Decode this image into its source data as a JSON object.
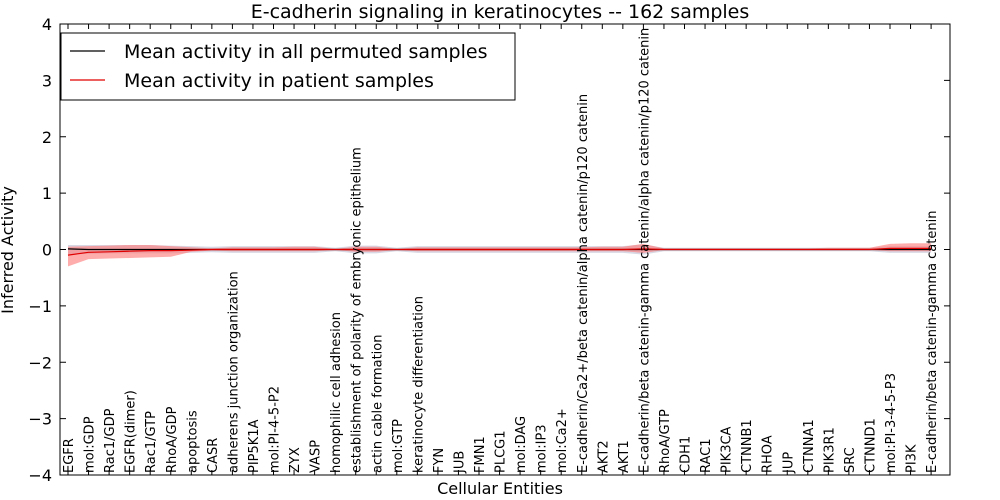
{
  "chart_data": {
    "type": "line",
    "title": "E-cadherin signaling in keratinocytes -- 162 samples",
    "xlabel": "Cellular Entities",
    "ylabel": "Inferred Activity",
    "ylim": [
      -4,
      4
    ],
    "yticks": [
      -4,
      -3,
      -2,
      -1,
      0,
      1,
      2,
      3,
      4
    ],
    "ytick_labels": [
      "−4",
      "−3",
      "−2",
      "−1",
      "0",
      "1",
      "2",
      "3",
      "4"
    ],
    "grid": false,
    "legend_position": "top-left",
    "categories": [
      "EGFR",
      "mol:GDP",
      "Rac1/GDP",
      "EGFR(dimer)",
      "Rac1/GTP",
      "RhoA/GDP",
      "apoptosis",
      "CASR",
      "adherens junction organization",
      "PIP5K1A",
      "mol:PI-4-5-P2",
      "ZYX",
      "VASP",
      "homophilic cell adhesion",
      "establishment of polarity of embryonic epithelium",
      "actin cable formation",
      "mol:GTP",
      "keratinocyte differentiation",
      "FYN",
      "JUB",
      "FMN1",
      "PLCG1",
      "mol:DAG",
      "mol:IP3",
      "mol:Ca2+",
      "E-cadherin/Ca2+/beta catenin/alpha catenin/p120 catenin",
      "AKT2",
      "AKT1",
      "E-cadherin/beta catenin-gamma catenin/alpha catenin/p120 catenin",
      "RhoA/GTP",
      "CDH1",
      "RAC1",
      "PIK3CA",
      "CTNNB1",
      "RHOA",
      "JUP",
      "CTNNA1",
      "PIK3R1",
      "SRC",
      "CTNND1",
      "mol:PI-3-4-5-P3",
      "PI3K",
      "E-cadherin/beta catenin-gamma catenin"
    ],
    "series": [
      {
        "name": "Mean activity in all permuted samples",
        "color": "#000000",
        "band_color": "#c8c8d8",
        "values": [
          0.01,
          0.0,
          0.0,
          0.0,
          0.0,
          0.0,
          0.0,
          0.0,
          0.0,
          0.0,
          0.0,
          0.0,
          0.0,
          0.0,
          0.0,
          0.0,
          0.0,
          0.0,
          0.0,
          0.0,
          0.0,
          0.0,
          0.0,
          0.0,
          0.0,
          0.0,
          0.0,
          0.0,
          0.0,
          0.0,
          0.0,
          0.0,
          0.0,
          0.0,
          0.0,
          0.0,
          0.0,
          0.0,
          0.0,
          0.0,
          0.0,
          0.0,
          0.0
        ],
        "band_low": [
          -0.08,
          -0.08,
          -0.07,
          -0.07,
          -0.07,
          -0.07,
          -0.06,
          -0.05,
          -0.06,
          -0.06,
          -0.06,
          -0.06,
          -0.06,
          -0.03,
          -0.07,
          -0.07,
          -0.03,
          -0.06,
          -0.06,
          -0.06,
          -0.06,
          -0.06,
          -0.06,
          -0.06,
          -0.06,
          -0.06,
          -0.06,
          -0.06,
          -0.09,
          -0.03,
          -0.03,
          -0.03,
          -0.03,
          -0.03,
          -0.03,
          -0.03,
          -0.03,
          -0.03,
          -0.03,
          -0.03,
          -0.06,
          -0.06,
          -0.06
        ],
        "band_high": [
          0.08,
          0.08,
          0.08,
          0.08,
          0.08,
          0.07,
          0.06,
          0.05,
          0.06,
          0.06,
          0.06,
          0.06,
          0.06,
          0.03,
          0.07,
          0.07,
          0.03,
          0.06,
          0.06,
          0.06,
          0.06,
          0.06,
          0.06,
          0.06,
          0.06,
          0.06,
          0.06,
          0.06,
          0.09,
          0.03,
          0.03,
          0.03,
          0.03,
          0.03,
          0.03,
          0.03,
          0.03,
          0.03,
          0.03,
          0.03,
          0.06,
          0.06,
          0.06
        ]
      },
      {
        "name": "Mean activity in patient samples",
        "color": "#e00000",
        "band_color": "#ff8080",
        "values": [
          -0.1,
          -0.05,
          -0.04,
          -0.03,
          -0.02,
          -0.02,
          -0.01,
          0.0,
          0.0,
          0.0,
          0.0,
          0.0,
          0.0,
          0.0,
          0.0,
          0.0,
          0.0,
          0.0,
          0.0,
          0.0,
          0.0,
          0.0,
          0.0,
          0.0,
          0.0,
          0.0,
          0.0,
          0.0,
          0.01,
          0.0,
          0.0,
          0.0,
          0.0,
          0.0,
          0.0,
          0.0,
          0.0,
          0.0,
          0.0,
          0.0,
          0.02,
          0.02,
          0.02
        ],
        "band_low": [
          -0.3,
          -0.17,
          -0.16,
          -0.15,
          -0.14,
          -0.13,
          -0.04,
          -0.02,
          -0.03,
          -0.03,
          -0.03,
          -0.03,
          -0.03,
          -0.01,
          -0.04,
          -0.04,
          -0.01,
          -0.03,
          -0.03,
          -0.03,
          -0.03,
          -0.03,
          -0.03,
          -0.03,
          -0.03,
          -0.03,
          -0.03,
          -0.03,
          -0.06,
          -0.01,
          -0.01,
          -0.01,
          -0.01,
          -0.01,
          -0.01,
          -0.01,
          -0.01,
          -0.01,
          -0.01,
          -0.01,
          -0.03,
          -0.03,
          -0.03
        ],
        "band_high": [
          0.05,
          0.06,
          0.07,
          0.08,
          0.08,
          0.06,
          0.04,
          0.02,
          0.04,
          0.04,
          0.04,
          0.05,
          0.05,
          0.01,
          0.05,
          0.05,
          0.01,
          0.04,
          0.04,
          0.04,
          0.04,
          0.04,
          0.04,
          0.04,
          0.04,
          0.04,
          0.05,
          0.05,
          0.1,
          0.02,
          0.02,
          0.02,
          0.02,
          0.02,
          0.02,
          0.02,
          0.02,
          0.03,
          0.03,
          0.03,
          0.1,
          0.11,
          0.11
        ]
      }
    ]
  }
}
